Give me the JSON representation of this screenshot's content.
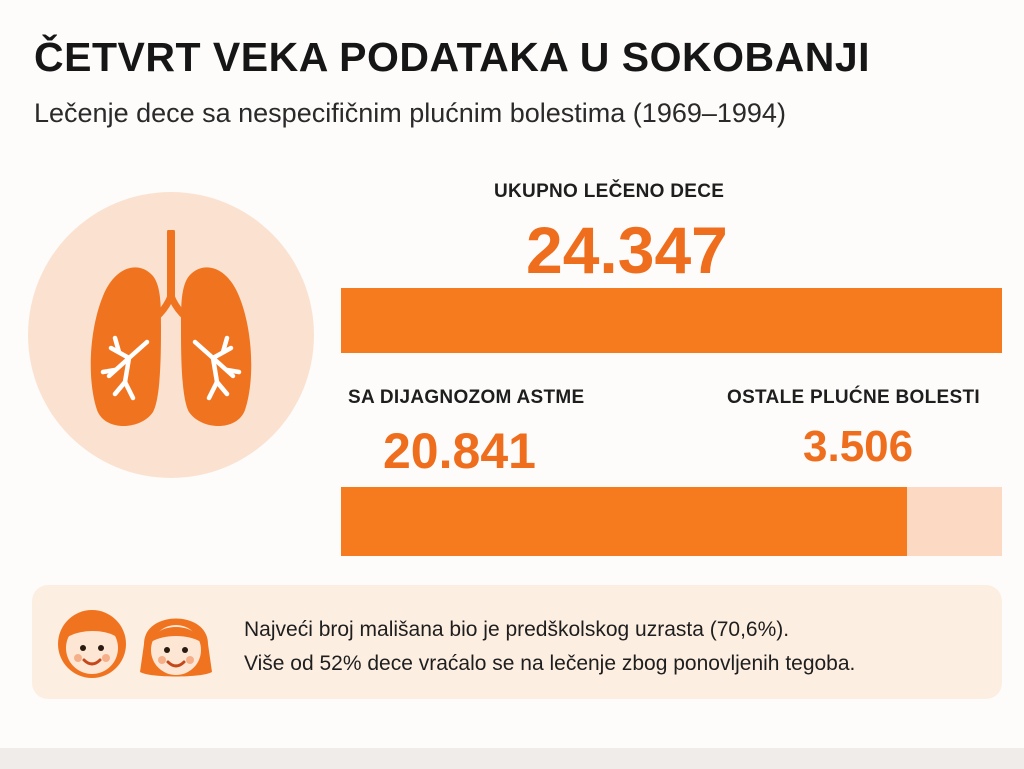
{
  "header": {
    "title": "ČETVRT VEKA PODATAKA U SOKOBANJI",
    "subtitle": "Lečenje dece sa nespecifičnim plućnim bolestima (1969–1994)"
  },
  "total": {
    "label": "UKUPNO LEČENO DECE",
    "value": "24.347"
  },
  "asthma": {
    "label": "SA DIJAGNOZOM ASTME",
    "value": "20.841"
  },
  "other": {
    "label": "OSTALE PLUĆNE BOLESTI",
    "value": "3.506"
  },
  "split_bar": {
    "asthma_fraction": 0.856,
    "other_fraction": 0.144
  },
  "info": {
    "line1": "Najveći broj mališana bio je predškolskog uzrasta (70,6%).",
    "line2": "Više od 52% dece vraćalo se na lečenje zbog ponovljenih tegoba."
  },
  "colors": {
    "accent": "#f67a1e",
    "number": "#ee6e1e",
    "light": "#fbd9c2",
    "circle": "#fbe2d0",
    "box": "#fdeee2"
  },
  "icons": {
    "lungs": "lungs-icon",
    "children": "children-icon"
  }
}
